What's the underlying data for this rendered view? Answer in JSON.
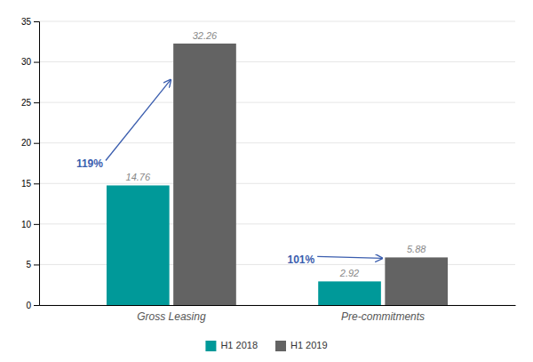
{
  "chart_data": {
    "type": "bar",
    "categories": [
      "Gross Leasing",
      "Pre-commitments"
    ],
    "series": [
      {
        "name": "H1 2018",
        "color": "#009999",
        "values": [
          14.76,
          2.92
        ]
      },
      {
        "name": "H1 2019",
        "color": "#636363",
        "values": [
          32.26,
          5.88
        ]
      }
    ],
    "annotations": [
      "119%",
      "101%"
    ],
    "ylim": [
      0,
      35
    ],
    "yticks": [
      0,
      5,
      10,
      15,
      20,
      25,
      30,
      35
    ],
    "grid": true,
    "legend": "bottom",
    "data_labels": true
  }
}
